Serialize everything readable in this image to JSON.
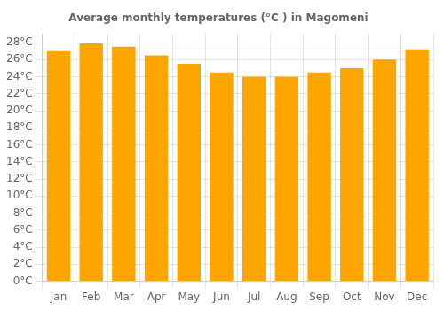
{
  "chart_data": {
    "type": "bar",
    "title": "Average monthly temperatures (°C ) in Magomeni",
    "categories": [
      "Jan",
      "Feb",
      "Mar",
      "Apr",
      "May",
      "Jun",
      "Jul",
      "Aug",
      "Sep",
      "Oct",
      "Nov",
      "Dec"
    ],
    "values": [
      27.0,
      27.9,
      27.5,
      26.5,
      25.5,
      24.5,
      24.0,
      24.0,
      24.5,
      25.0,
      26.0,
      27.2
    ],
    "color": "#FFA500",
    "ylim": [
      0,
      29
    ],
    "yticks": [
      {
        "value": 0,
        "label": "0°C"
      },
      {
        "value": 2,
        "label": "2°C"
      },
      {
        "value": 4,
        "label": "4°C"
      },
      {
        "value": 6,
        "label": "6°C"
      },
      {
        "value": 8,
        "label": "8°C"
      },
      {
        "value": 10,
        "label": "10°C"
      },
      {
        "value": 12,
        "label": "12°C"
      },
      {
        "value": 14,
        "label": "14°C"
      },
      {
        "value": 16,
        "label": "16°C"
      },
      {
        "value": 18,
        "label": "18°C"
      },
      {
        "value": 20,
        "label": "20°C"
      },
      {
        "value": 22,
        "label": "22°C"
      },
      {
        "value": 24,
        "label": "24°C"
      },
      {
        "value": 26,
        "label": "26°C"
      },
      {
        "value": 28,
        "label": "28°C"
      }
    ],
    "grid": true
  }
}
